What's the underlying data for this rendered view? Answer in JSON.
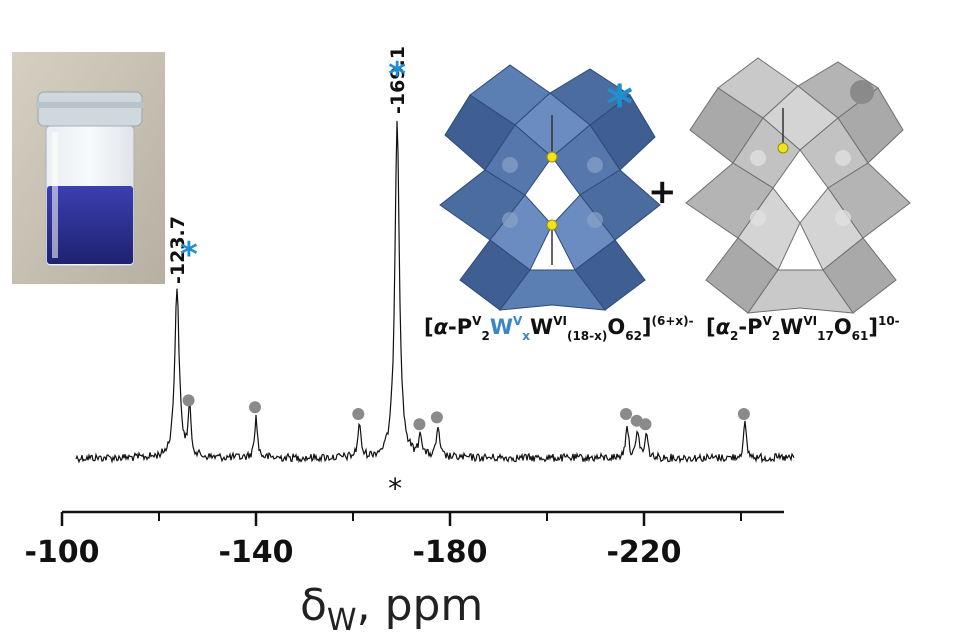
{
  "chart_data": {
    "type": "line",
    "xlabel_symbol": "δ",
    "xlabel_sub": "W",
    "xlabel_rest": ", ppm",
    "xlim": [
      -100,
      -250
    ],
    "xticks": [
      -100,
      -140,
      -180,
      -220
    ],
    "xtick_labels": [
      "-100",
      "-140",
      "-180",
      "-220"
    ],
    "minor_ticks": [
      -120,
      -160,
      -200,
      -240
    ],
    "major_peaks": [
      {
        "x": -123.7,
        "intensity": 0.5,
        "label": "-123.7",
        "marker": "*"
      },
      {
        "x": -169.1,
        "intensity": 1.0,
        "label": "-169.1",
        "marker": "*"
      }
    ],
    "minor_peaks": [
      {
        "x": -126.3,
        "intensity": 0.14
      },
      {
        "x": -140.0,
        "intensity": 0.12
      },
      {
        "x": -161.3,
        "intensity": 0.1
      },
      {
        "x": -173.9,
        "intensity": 0.07
      },
      {
        "x": -177.5,
        "intensity": 0.09
      },
      {
        "x": -216.5,
        "intensity": 0.1
      },
      {
        "x": -218.7,
        "intensity": 0.08
      },
      {
        "x": -220.5,
        "intensity": 0.07
      },
      {
        "x": -240.8,
        "intensity": 0.1
      }
    ],
    "baseline_marker": "*",
    "baseline_marker_x": -169.1,
    "colors": {
      "star": "#1f8fd0",
      "dot": "#8a8a8a",
      "blue_cluster": "#4a6c9e",
      "gray_cluster": "#b8b8b8",
      "vial_liquid": "#2a2d8f"
    }
  },
  "legend": {
    "star_symbol": "*",
    "formula_1": {
      "open": "[",
      "a": "α",
      "dash": "-P",
      "sup1": "V",
      "sub1": "2",
      "W_blue": "W",
      "sup2": "V",
      "sub2": "x",
      "W": "W",
      "sup3": "VI",
      "sub3": "(18-x)",
      "O": "O",
      "sub4": "62",
      "close": "]",
      "charge": "(6+x)-"
    },
    "plus": "+",
    "formula_2": {
      "open": "[",
      "a": "α",
      "sub0": "2",
      "dash": "-P",
      "sup1": "V",
      "sub1": "2",
      "W": "W",
      "sup2": "VI",
      "sub2": "17",
      "O": "O",
      "sub3": "61",
      "close": "]",
      "charge": "10-"
    }
  }
}
